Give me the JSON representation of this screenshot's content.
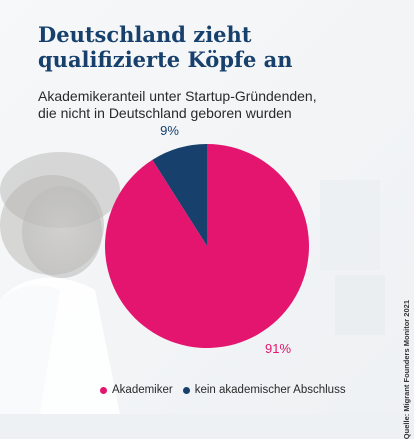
{
  "title_line1": "Deutschland zieht",
  "title_line2": "qualifizierte Köpfe an",
  "subtitle_line1": "Akademikeranteil unter Startup-Gründenden,",
  "subtitle_line2": "die nicht in Deutschland geboren wurden",
  "source": "Quelle: Migrant Founders Monitor 2021",
  "chart_data": {
    "type": "pie",
    "title": "Deutschland zieht qualifizierte Köpfe an",
    "subtitle": "Akademikeranteil unter Startup-Gründenden, die nicht in Deutschland geboren wurden",
    "unit": "%",
    "legend_position": "bottom",
    "slices": [
      {
        "name": "Akademiker",
        "value": 91,
        "label": "91%",
        "color": "#e3156f"
      },
      {
        "name": "kein akademischer Abschluss",
        "value": 9,
        "label": "9%",
        "color": "#17406d"
      }
    ]
  }
}
